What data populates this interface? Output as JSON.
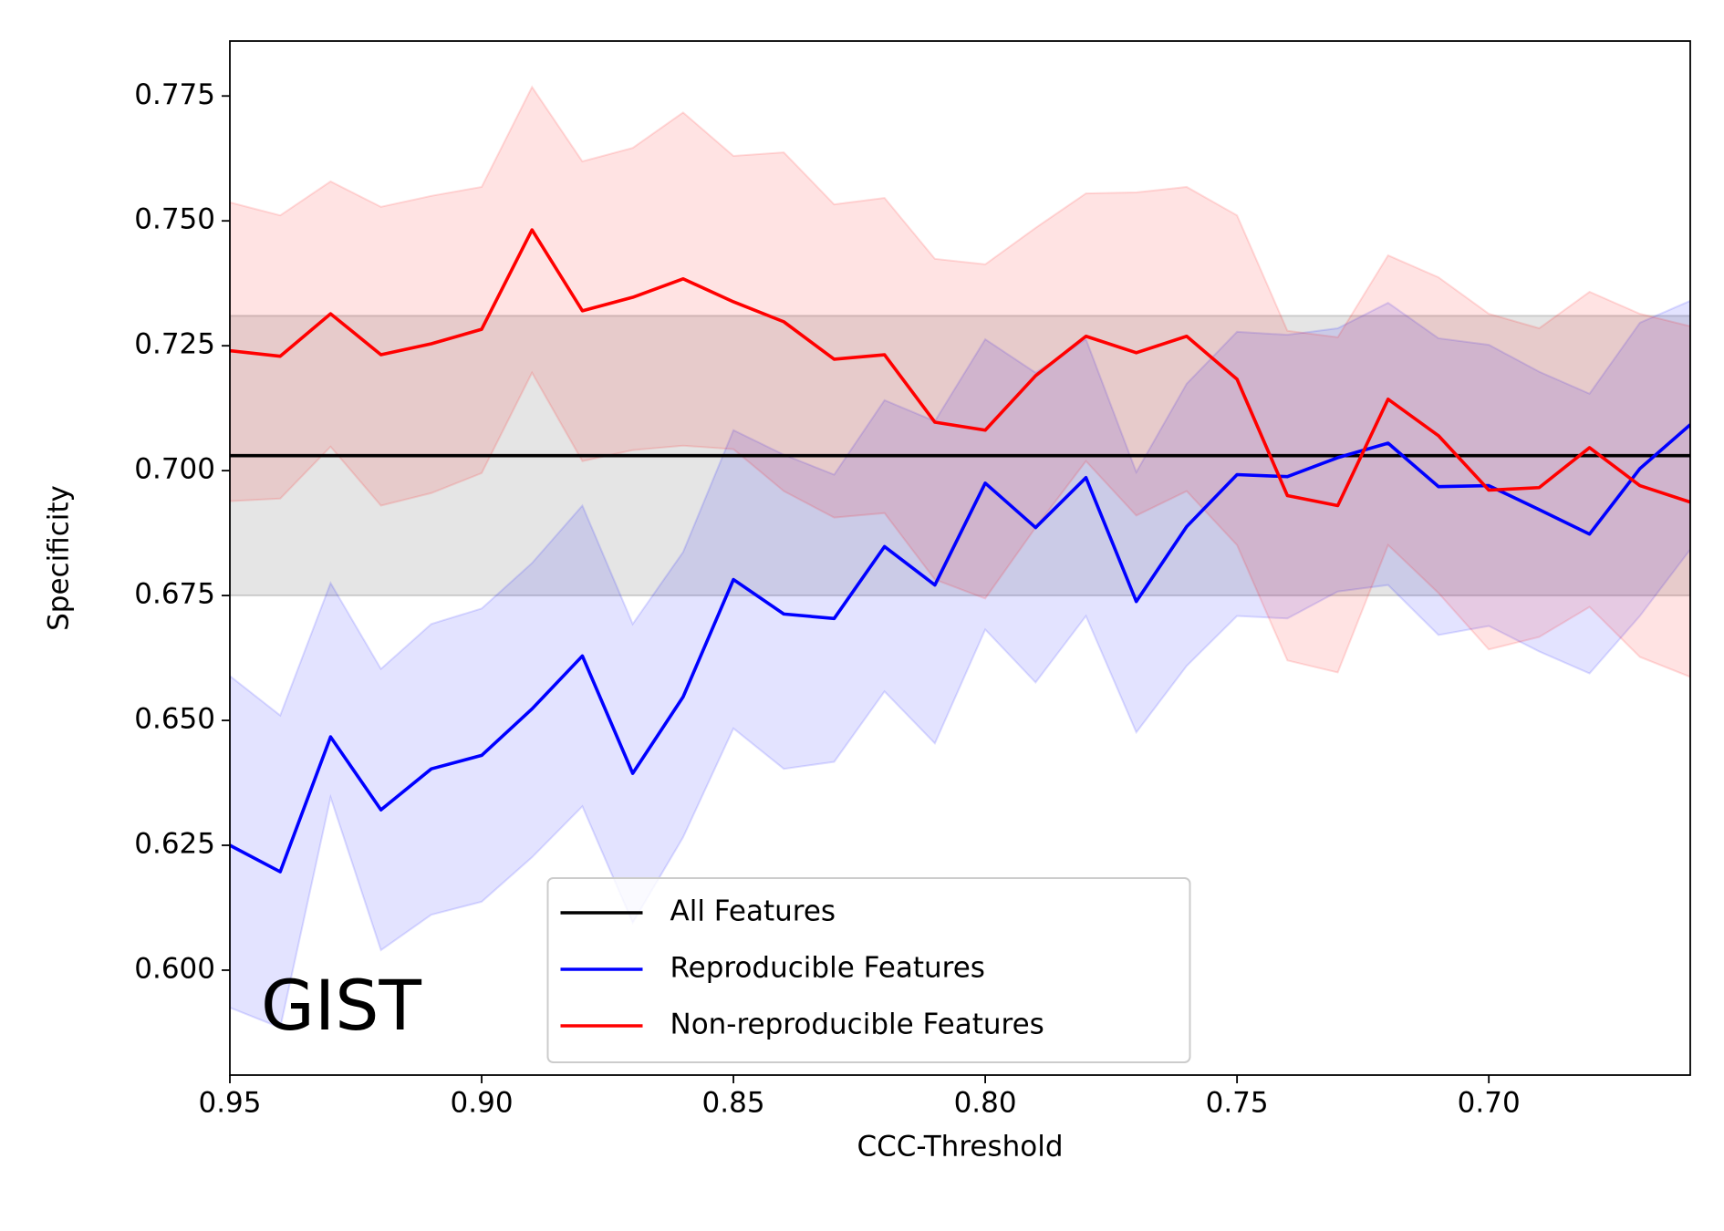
{
  "chart_data": {
    "type": "line",
    "xlabel": "CCC-Threshold",
    "ylabel": "Specificity",
    "annotation": "GIST",
    "legend": "lower center",
    "xlim": [
      0.95,
      0.66
    ],
    "ylim": [
      0.579,
      0.786
    ],
    "xticks": [
      0.95,
      {
        "value": 0.9,
        "label": "0.90"
      },
      0.85,
      {
        "value": 0.8,
        "label": "0.80"
      },
      0.75,
      {
        "value": 0.7,
        "label": "0.70"
      }
    ],
    "yticks": [
      {
        "value": 0.6,
        "label": "0.600"
      },
      0.625,
      {
        "value": 0.65,
        "label": "0.650"
      },
      0.675,
      {
        "value": 0.7,
        "label": "0.700"
      },
      0.725,
      {
        "value": 0.75,
        "label": "0.750"
      },
      0.775
    ],
    "x": [
      0.95,
      0.94,
      0.93,
      0.92,
      0.91,
      0.9,
      0.89,
      0.88,
      0.87,
      0.86,
      0.85,
      0.84,
      0.83,
      0.82,
      0.81,
      0.8,
      0.79,
      0.78,
      0.77,
      0.76,
      0.75,
      0.74,
      0.73,
      0.72,
      0.71,
      0.7,
      0.69,
      0.68,
      0.67,
      0.66
    ],
    "series": [
      {
        "name": "All Features",
        "color": "#000000",
        "value": 0.703,
        "lower": 0.675,
        "upper": 0.731
      },
      {
        "name": "Reproducible Features",
        "color": "#0000ff",
        "values": [
          0.625,
          0.6197,
          0.6467,
          0.6321,
          0.6403,
          0.643,
          0.6523,
          0.6629,
          0.6394,
          0.6547,
          0.6782,
          0.6713,
          0.6704,
          0.6848,
          0.6771,
          0.6975,
          0.6886,
          0.6986,
          0.6738,
          0.6888,
          0.6992,
          0.6988,
          0.7026,
          0.7055,
          0.6968,
          0.697,
          0.6922,
          0.6873,
          0.7004,
          0.7092
        ],
        "upper": [
          0.6589,
          0.651,
          0.6775,
          0.6603,
          0.6693,
          0.6724,
          0.6815,
          0.693,
          0.6693,
          0.6837,
          0.7081,
          0.7032,
          0.6992,
          0.7141,
          0.7099,
          0.7263,
          0.7196,
          0.7263,
          0.6997,
          0.7174,
          0.7278,
          0.7272,
          0.7285,
          0.7336,
          0.7265,
          0.7252,
          0.7198,
          0.7154,
          0.7296,
          0.734
        ],
        "lower": [
          0.5925,
          0.5885,
          0.6346,
          0.604,
          0.6111,
          0.6137,
          0.6226,
          0.6328,
          0.6095,
          0.6266,
          0.6484,
          0.6403,
          0.6417,
          0.6558,
          0.6454,
          0.6682,
          0.6576,
          0.6709,
          0.6476,
          0.6609,
          0.6709,
          0.6704,
          0.6758,
          0.6771,
          0.6671,
          0.6689,
          0.6638,
          0.6594,
          0.6709,
          0.6842
        ]
      },
      {
        "name": "Non-reproducible Features",
        "color": "#ff0000",
        "values": [
          0.724,
          0.7229,
          0.7314,
          0.7232,
          0.7254,
          0.7283,
          0.7482,
          0.732,
          0.7347,
          0.7384,
          0.7338,
          0.7298,
          0.7223,
          0.7232,
          0.7097,
          0.7081,
          0.719,
          0.7269,
          0.7236,
          0.7269,
          0.7183,
          0.695,
          0.693,
          0.7143,
          0.707,
          0.6961,
          0.6966,
          0.7046,
          0.697,
          0.6937
        ],
        "upper": [
          0.7537,
          0.7511,
          0.7579,
          0.7528,
          0.755,
          0.7568,
          0.7768,
          0.7619,
          0.7646,
          0.7717,
          0.763,
          0.7637,
          0.7533,
          0.7546,
          0.7424,
          0.7413,
          0.7486,
          0.7555,
          0.7557,
          0.7568,
          0.7511,
          0.728,
          0.7267,
          0.7431,
          0.7387,
          0.7314,
          0.7285,
          0.7358,
          0.7314,
          0.7289
        ],
        "lower": [
          0.6939,
          0.6944,
          0.7048,
          0.693,
          0.6955,
          0.6995,
          0.7196,
          0.7019,
          0.7041,
          0.705,
          0.7043,
          0.6959,
          0.6906,
          0.6915,
          0.6782,
          0.6744,
          0.6886,
          0.7019,
          0.691,
          0.6959,
          0.6851,
          0.662,
          0.6596,
          0.6851,
          0.6755,
          0.6642,
          0.6667,
          0.6727,
          0.6627,
          0.6587
        ]
      }
    ]
  }
}
